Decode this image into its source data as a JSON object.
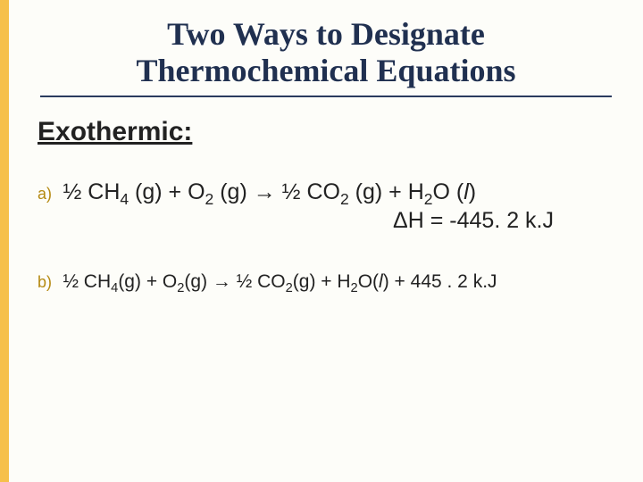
{
  "colors": {
    "accent_bar": "#f6c04a",
    "title_text": "#203050",
    "rule": "#2a3b5e",
    "body_text": "#222222",
    "marker_text": "#b58a12",
    "background": "#fdfdf9"
  },
  "typography": {
    "title_family": "Times New Roman",
    "title_size_pt": 27,
    "body_family": "Verdana",
    "section_size_pt": 23,
    "eq_a_size_pt": 19,
    "eq_b_size_pt": 16,
    "marker_size_pt": 14
  },
  "title": {
    "line1": "Two Ways to Designate",
    "line2": "Thermochemical Equations"
  },
  "section": "Exothermic:",
  "equations": {
    "a": {
      "marker": "a)",
      "frac": "½",
      "reactant1": "CH",
      "reactant1_sub": "4",
      "state1": " (g) + O",
      "reactant2_sub": "2",
      "state2": " (g) ",
      "arrow": "→",
      "prod_frac": " ½ CO",
      "prod1_sub": "2",
      "prod_state1": " (g) + H",
      "prod2_sub": "2",
      "prod_O": "O (",
      "prod_phase": "l",
      "prod_close": ")",
      "dh_label": "ΔH = -445. 2 k.J"
    },
    "b": {
      "marker": "b)",
      "frac": "½",
      "r1": " CH",
      "r1s": "4",
      "r1p": "(g) + O",
      "r2s": "2",
      "r2p": "(g) ",
      "arrow": "→",
      "p_pre": " ½ CO",
      "p1s": "2",
      "p1p": "(g) + H",
      "p2s": "2",
      "p_O": "O(",
      "p_phase": "l",
      "p_close": ") + 445 . 2 k.J"
    }
  }
}
